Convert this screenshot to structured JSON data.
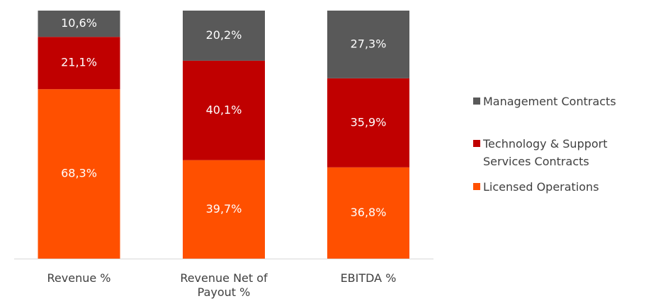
{
  "chart_data": {
    "type": "stacked_bar",
    "categories": [
      "Revenue %",
      "Revenue Net of Payout %",
      "EBITDA %"
    ],
    "series": [
      {
        "name": "Licensed Operations",
        "color": "#ff5000",
        "values": [
          68.3,
          39.7,
          36.8
        ],
        "value_labels": [
          "68,3%",
          "39,7%",
          "36,8%"
        ]
      },
      {
        "name": "Technology & Support Services Contracts",
        "color": "#c00000",
        "values": [
          21.1,
          40.1,
          35.9
        ],
        "value_labels": [
          "21,1%",
          "40,1%",
          "35,9%"
        ]
      },
      {
        "name": "Management Contracts",
        "color": "#595959",
        "values": [
          10.6,
          20.2,
          27.3
        ],
        "value_labels": [
          "10,6%",
          "20,2%",
          "27,3%"
        ]
      }
    ],
    "legend": "right"
  }
}
